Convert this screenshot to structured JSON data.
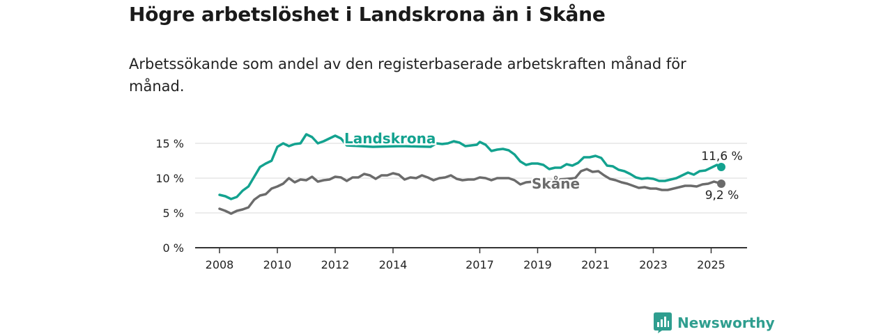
{
  "title": "Högre arbetslöshet i Landskrona än i Skåne",
  "subtitle": "Arbetssökande som andel av den registerbaserade arbetskraften månad för månad.",
  "brand": "Newsworthy",
  "colors": {
    "landskrona": "#13a28f",
    "skane": "#6b6b6b",
    "grid": "#d9d9d9",
    "axis": "#333333",
    "brand": "#2f9e8f"
  },
  "chart_data": {
    "type": "line",
    "ylim": [
      0,
      17
    ],
    "xlim": [
      2008,
      2026
    ],
    "grid": true,
    "y_ticks": [
      {
        "value": 0,
        "label": "0 %"
      },
      {
        "value": 5,
        "label": "5 %"
      },
      {
        "value": 10,
        "label": "10 %"
      },
      {
        "value": 15,
        "label": "15 %"
      }
    ],
    "x_ticks": [
      {
        "value": 2008,
        "label": "2008"
      },
      {
        "value": 2010,
        "label": "2010"
      },
      {
        "value": 2012,
        "label": "2012"
      },
      {
        "value": 2014,
        "label": "2014"
      },
      {
        "value": 2017,
        "label": "2017"
      },
      {
        "value": 2019,
        "label": "2019"
      },
      {
        "value": 2021,
        "label": "2021"
      },
      {
        "value": 2023,
        "label": "2023"
      },
      {
        "value": 2025,
        "label": "2025"
      }
    ],
    "series": [
      {
        "name": "Landskrona",
        "end_label": "11,6 %",
        "points": [
          [
            2008.0,
            7.6
          ],
          [
            2008.2,
            7.4
          ],
          [
            2008.4,
            7.0
          ],
          [
            2008.6,
            7.3
          ],
          [
            2008.8,
            8.2
          ],
          [
            2009.0,
            8.8
          ],
          [
            2009.2,
            10.2
          ],
          [
            2009.4,
            11.6
          ],
          [
            2009.6,
            12.1
          ],
          [
            2009.8,
            12.5
          ],
          [
            2010.0,
            14.5
          ],
          [
            2010.2,
            15.0
          ],
          [
            2010.4,
            14.6
          ],
          [
            2010.6,
            14.9
          ],
          [
            2010.8,
            15.0
          ],
          [
            2011.0,
            16.3
          ],
          [
            2011.2,
            15.9
          ],
          [
            2011.4,
            15.0
          ],
          [
            2011.6,
            15.3
          ],
          [
            2011.8,
            15.7
          ],
          [
            2012.0,
            16.1
          ],
          [
            2012.2,
            15.7
          ],
          [
            2012.4,
            14.7
          ],
          [
            2013.3,
            14.5
          ],
          [
            2014.3,
            14.6
          ],
          [
            2015.3,
            14.5
          ],
          [
            2015.5,
            15.0
          ],
          [
            2015.7,
            14.9
          ],
          [
            2015.9,
            15.0
          ],
          [
            2016.1,
            15.3
          ],
          [
            2016.3,
            15.1
          ],
          [
            2016.5,
            14.6
          ],
          [
            2016.7,
            14.7
          ],
          [
            2016.9,
            14.8
          ],
          [
            2017.0,
            15.2
          ],
          [
            2017.2,
            14.8
          ],
          [
            2017.4,
            13.9
          ],
          [
            2017.6,
            14.1
          ],
          [
            2017.8,
            14.2
          ],
          [
            2018.0,
            14.0
          ],
          [
            2018.2,
            13.4
          ],
          [
            2018.4,
            12.4
          ],
          [
            2018.6,
            11.9
          ],
          [
            2018.8,
            12.1
          ],
          [
            2019.0,
            12.1
          ],
          [
            2019.2,
            11.9
          ],
          [
            2019.4,
            11.3
          ],
          [
            2019.6,
            11.5
          ],
          [
            2019.8,
            11.5
          ],
          [
            2020.0,
            12.0
          ],
          [
            2020.2,
            11.8
          ],
          [
            2020.4,
            12.2
          ],
          [
            2020.6,
            13.0
          ],
          [
            2020.8,
            13.0
          ],
          [
            2021.0,
            13.2
          ],
          [
            2021.2,
            12.9
          ],
          [
            2021.4,
            11.8
          ],
          [
            2021.6,
            11.7
          ],
          [
            2021.8,
            11.2
          ],
          [
            2022.0,
            11.0
          ],
          [
            2022.2,
            10.6
          ],
          [
            2022.4,
            10.1
          ],
          [
            2022.6,
            9.9
          ],
          [
            2022.8,
            10.0
          ],
          [
            2023.0,
            9.9
          ],
          [
            2023.2,
            9.6
          ],
          [
            2023.4,
            9.6
          ],
          [
            2023.6,
            9.8
          ],
          [
            2023.8,
            10.0
          ],
          [
            2024.0,
            10.4
          ],
          [
            2024.2,
            10.8
          ],
          [
            2024.4,
            10.5
          ],
          [
            2024.6,
            11.0
          ],
          [
            2024.8,
            11.1
          ],
          [
            2025.0,
            11.5
          ],
          [
            2025.2,
            11.9
          ],
          [
            2025.35,
            11.6
          ]
        ]
      },
      {
        "name": "Skåne",
        "end_label": "9,2 %",
        "points": [
          [
            2008.0,
            5.6
          ],
          [
            2008.2,
            5.3
          ],
          [
            2008.4,
            4.9
          ],
          [
            2008.6,
            5.3
          ],
          [
            2008.8,
            5.5
          ],
          [
            2009.0,
            5.8
          ],
          [
            2009.2,
            6.9
          ],
          [
            2009.4,
            7.5
          ],
          [
            2009.6,
            7.7
          ],
          [
            2009.8,
            8.5
          ],
          [
            2010.0,
            8.8
          ],
          [
            2010.2,
            9.2
          ],
          [
            2010.4,
            10.0
          ],
          [
            2010.6,
            9.4
          ],
          [
            2010.8,
            9.8
          ],
          [
            2011.0,
            9.7
          ],
          [
            2011.2,
            10.2
          ],
          [
            2011.4,
            9.5
          ],
          [
            2011.6,
            9.7
          ],
          [
            2011.8,
            9.8
          ],
          [
            2012.0,
            10.2
          ],
          [
            2012.2,
            10.1
          ],
          [
            2012.4,
            9.6
          ],
          [
            2012.6,
            10.1
          ],
          [
            2012.8,
            10.1
          ],
          [
            2013.0,
            10.6
          ],
          [
            2013.2,
            10.4
          ],
          [
            2013.4,
            9.9
          ],
          [
            2013.6,
            10.4
          ],
          [
            2013.8,
            10.4
          ],
          [
            2014.0,
            10.7
          ],
          [
            2014.2,
            10.5
          ],
          [
            2014.4,
            9.8
          ],
          [
            2014.6,
            10.1
          ],
          [
            2014.8,
            10.0
          ],
          [
            2015.0,
            10.4
          ],
          [
            2015.2,
            10.1
          ],
          [
            2015.4,
            9.7
          ],
          [
            2015.6,
            10.0
          ],
          [
            2015.8,
            10.1
          ],
          [
            2016.0,
            10.4
          ],
          [
            2016.2,
            9.9
          ],
          [
            2016.4,
            9.7
          ],
          [
            2016.6,
            9.8
          ],
          [
            2016.8,
            9.8
          ],
          [
            2017.0,
            10.1
          ],
          [
            2017.2,
            10.0
          ],
          [
            2017.4,
            9.7
          ],
          [
            2017.6,
            10.0
          ],
          [
            2017.8,
            10.0
          ],
          [
            2018.0,
            10.0
          ],
          [
            2018.2,
            9.7
          ],
          [
            2018.4,
            9.1
          ],
          [
            2018.6,
            9.4
          ],
          [
            2020.3,
            10.0
          ],
          [
            2020.5,
            11.0
          ],
          [
            2020.7,
            11.3
          ],
          [
            2020.9,
            10.9
          ],
          [
            2021.1,
            11.0
          ],
          [
            2021.3,
            10.4
          ],
          [
            2021.5,
            9.9
          ],
          [
            2021.7,
            9.7
          ],
          [
            2021.9,
            9.4
          ],
          [
            2022.1,
            9.2
          ],
          [
            2022.3,
            8.9
          ],
          [
            2022.5,
            8.6
          ],
          [
            2022.7,
            8.7
          ],
          [
            2022.9,
            8.5
          ],
          [
            2023.1,
            8.5
          ],
          [
            2023.3,
            8.3
          ],
          [
            2023.5,
            8.3
          ],
          [
            2023.7,
            8.5
          ],
          [
            2023.9,
            8.7
          ],
          [
            2024.1,
            8.9
          ],
          [
            2024.3,
            8.9
          ],
          [
            2024.5,
            8.8
          ],
          [
            2024.7,
            9.1
          ],
          [
            2024.9,
            9.2
          ],
          [
            2025.1,
            9.5
          ],
          [
            2025.35,
            9.2
          ]
        ]
      }
    ]
  }
}
